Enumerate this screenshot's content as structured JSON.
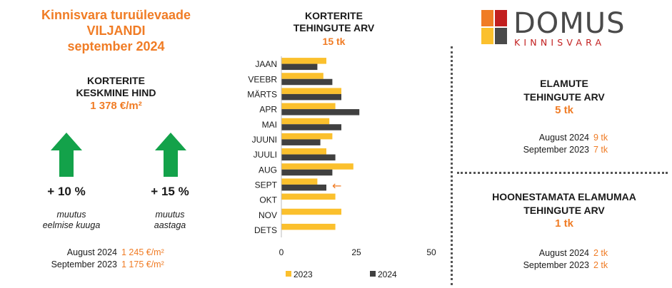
{
  "report": {
    "title_lines": [
      "Kinnisvara turuülevaade",
      "VILJANDI",
      "september 2024"
    ]
  },
  "apartments_price": {
    "heading_lines": [
      "KORTERITE",
      "KESKMINE HIND"
    ],
    "value": "1 378 €/m²",
    "change_month": "+ 10 %",
    "change_month_caption_lines": [
      "muutus",
      "eelmise kuuga"
    ],
    "change_year": "+ 15 %",
    "change_year_caption_lines": [
      "muutus",
      "aastaga"
    ],
    "arrow_color": "#13a24a",
    "comparison": [
      {
        "label": "August 2024",
        "value": "1 245 €/m²"
      },
      {
        "label": "September 2023",
        "value": "1 175 €/m²"
      }
    ]
  },
  "chart_data": {
    "type": "bar",
    "orientation": "horizontal",
    "title_lines": [
      "KORTERITE",
      "TEHINGUTE ARV"
    ],
    "subtitle": "15 tk",
    "categories": [
      "JAAN",
      "VEEBR",
      "MÄRTS",
      "APR",
      "MAI",
      "JUUNI",
      "JUULI",
      "AUG",
      "SEPT",
      "OKT",
      "NOV",
      "DETS"
    ],
    "series": [
      {
        "name": "2023",
        "color": "#fbc02d",
        "values": [
          15,
          14,
          20,
          18,
          16,
          17,
          15,
          24,
          12,
          18,
          20,
          18
        ]
      },
      {
        "name": "2024",
        "color": "#404040",
        "values": [
          12,
          17,
          20,
          26,
          20,
          13,
          18,
          17,
          15,
          null,
          null,
          null
        ]
      }
    ],
    "xlim": [
      0,
      50
    ],
    "xticks": [
      0,
      25,
      50
    ],
    "grid": false,
    "legend": "bottom",
    "highlight_category": "SEPT",
    "highlight_marker": "←",
    "highlight_color": "#f07c25"
  },
  "houses": {
    "heading_lines": [
      "ELAMUTE",
      "TEHINGUTE ARV"
    ],
    "value": "5 tk",
    "comparison": [
      {
        "label": "August 2024",
        "value": "9 tk"
      },
      {
        "label": "September 2023",
        "value": "7 tk"
      }
    ]
  },
  "land": {
    "heading_lines": [
      "HOONESTAMATA ELAMUMAA",
      "TEHINGUTE ARV"
    ],
    "value": "1 tk",
    "comparison": [
      {
        "label": "August 2024",
        "value": "2 tk"
      },
      {
        "label": "September 2023",
        "value": "2 tk"
      }
    ]
  },
  "logo": {
    "wordmark": "DOMUS",
    "subtitle": "KINNISVARA",
    "square_colors": [
      "#f07c25",
      "#c21f1f",
      "#fbc02d",
      "#4a4a4a"
    ]
  }
}
